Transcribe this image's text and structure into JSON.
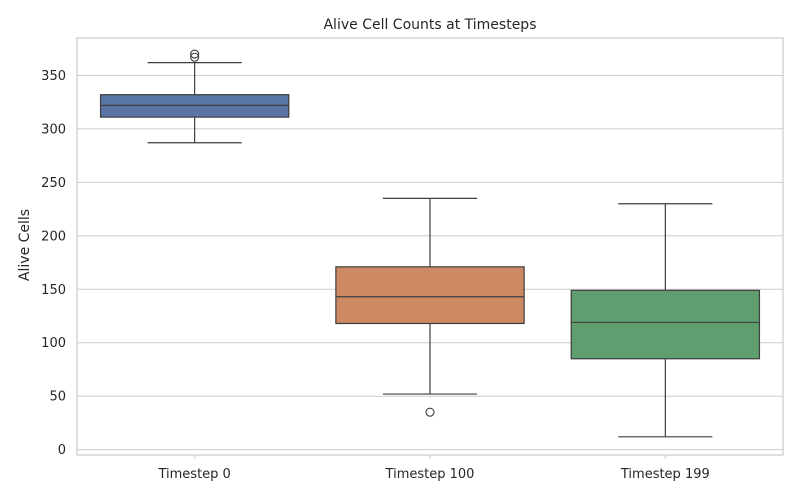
{
  "chart_data": {
    "type": "box",
    "title": "Alive Cell Counts at Timesteps",
    "xlabel": "",
    "ylabel": "Alive Cells",
    "ylim": [
      -5,
      385
    ],
    "yticks": [
      0,
      50,
      100,
      150,
      200,
      250,
      300,
      350
    ],
    "grid": "horizontal",
    "categories": [
      "Timestep 0",
      "Timestep 100",
      "Timestep 199"
    ],
    "boxes": [
      {
        "category": "Timestep 0",
        "color": "#5875a4",
        "whisker_low": 287,
        "q1": 311,
        "median": 322,
        "q3": 332,
        "whisker_high": 362,
        "outliers": [
          367,
          370
        ]
      },
      {
        "category": "Timestep 100",
        "color": "#cc8963",
        "whisker_low": 52,
        "q1": 118,
        "median": 143,
        "q3": 171,
        "whisker_high": 235,
        "outliers": [
          35
        ]
      },
      {
        "category": "Timestep 199",
        "color": "#5f9e6e",
        "whisker_low": 12,
        "q1": 85,
        "median": 119,
        "q3": 149,
        "whisker_high": 230,
        "outliers": []
      }
    ],
    "colors": {
      "grid": "#cccccc",
      "axes_edge": "#cccccc",
      "line": "#3f3f3f",
      "text": "#262626"
    }
  }
}
